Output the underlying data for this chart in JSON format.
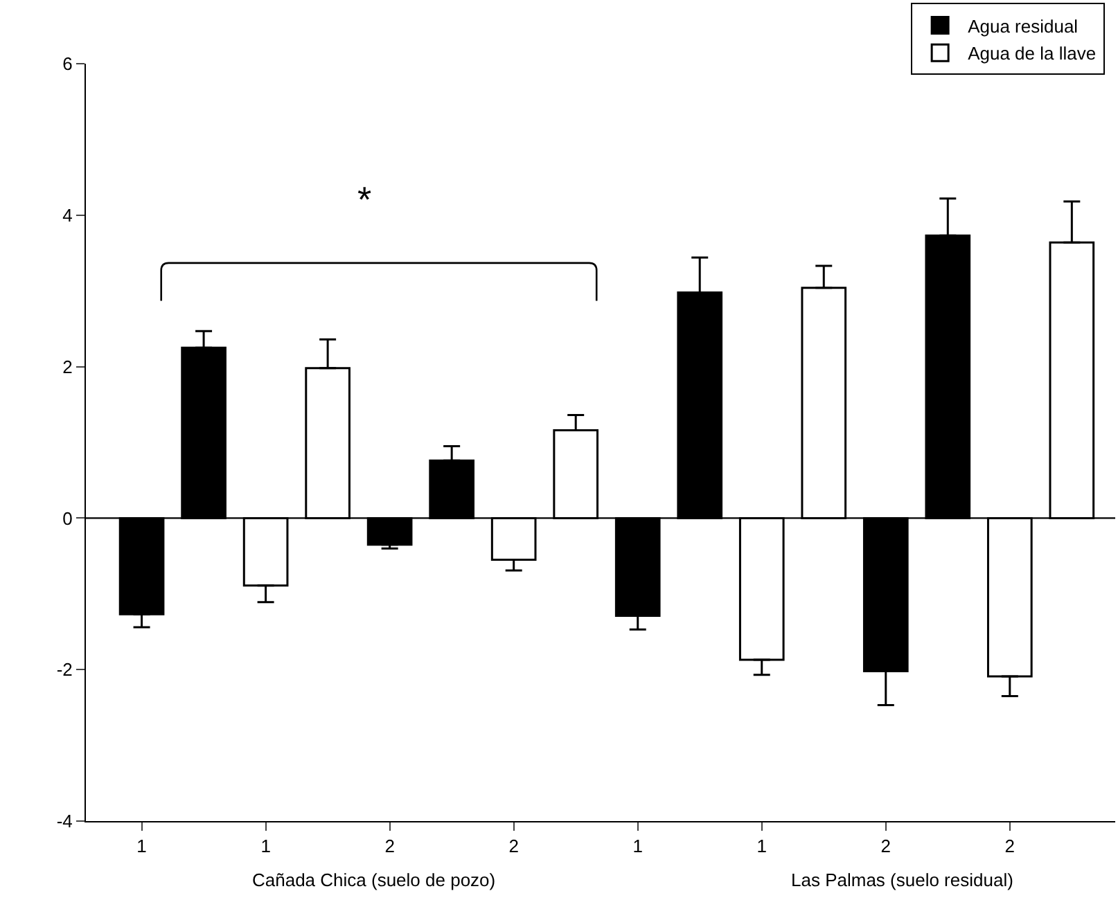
{
  "chart_data": {
    "type": "bar",
    "categories": [
      "1",
      null,
      "1",
      null,
      "2",
      null,
      "2",
      null,
      "1",
      null,
      "1",
      null,
      "2",
      null,
      "2",
      null
    ],
    "series": [
      {
        "name": "Agua residual",
        "color": "#000000",
        "values": [
          -1.27,
          2.25,
          null,
          null,
          -0.35,
          0.76,
          null,
          null,
          -1.29,
          2.98,
          null,
          null,
          -2.02,
          3.73,
          null,
          null
        ],
        "errors": [
          [
            -1.44,
            -1.27
          ],
          [
            2.25,
            2.47
          ],
          null,
          null,
          [
            -0.4,
            -0.35
          ],
          [
            0.76,
            0.95
          ],
          null,
          null,
          [
            -1.47,
            -1.29
          ],
          [
            2.98,
            3.44
          ],
          null,
          null,
          [
            -2.47,
            -2.02
          ],
          [
            3.73,
            4.22
          ],
          null,
          null
        ]
      },
      {
        "name": "Agua de la llave",
        "color": "#ffffff",
        "values": [
          null,
          null,
          -0.89,
          1.98,
          null,
          null,
          -0.55,
          1.16,
          null,
          null,
          -1.87,
          3.04,
          null,
          null,
          -2.09,
          3.64
        ],
        "errors": [
          null,
          null,
          [
            -1.11,
            -0.89
          ],
          [
            1.98,
            2.36
          ],
          null,
          null,
          [
            -0.69,
            -0.55
          ],
          [
            1.16,
            1.36
          ],
          null,
          null,
          [
            -2.07,
            -1.87
          ],
          [
            3.04,
            3.33
          ],
          null,
          null,
          [
            -2.35,
            -2.09
          ],
          [
            3.64,
            4.18
          ]
        ]
      }
    ],
    "ylim": [
      -4,
      6
    ],
    "yticks": [
      -4,
      -2,
      0,
      2,
      4,
      6
    ],
    "legend": "top right",
    "grid": false,
    "ref_lines": [
      {
        "axis": "y",
        "value": 0,
        "color": "#000000"
      }
    ],
    "annotations": [
      "*",
      "Cañada Chica (suelo de pozo)",
      "Las Palmas (suelo residual)"
    ]
  }
}
